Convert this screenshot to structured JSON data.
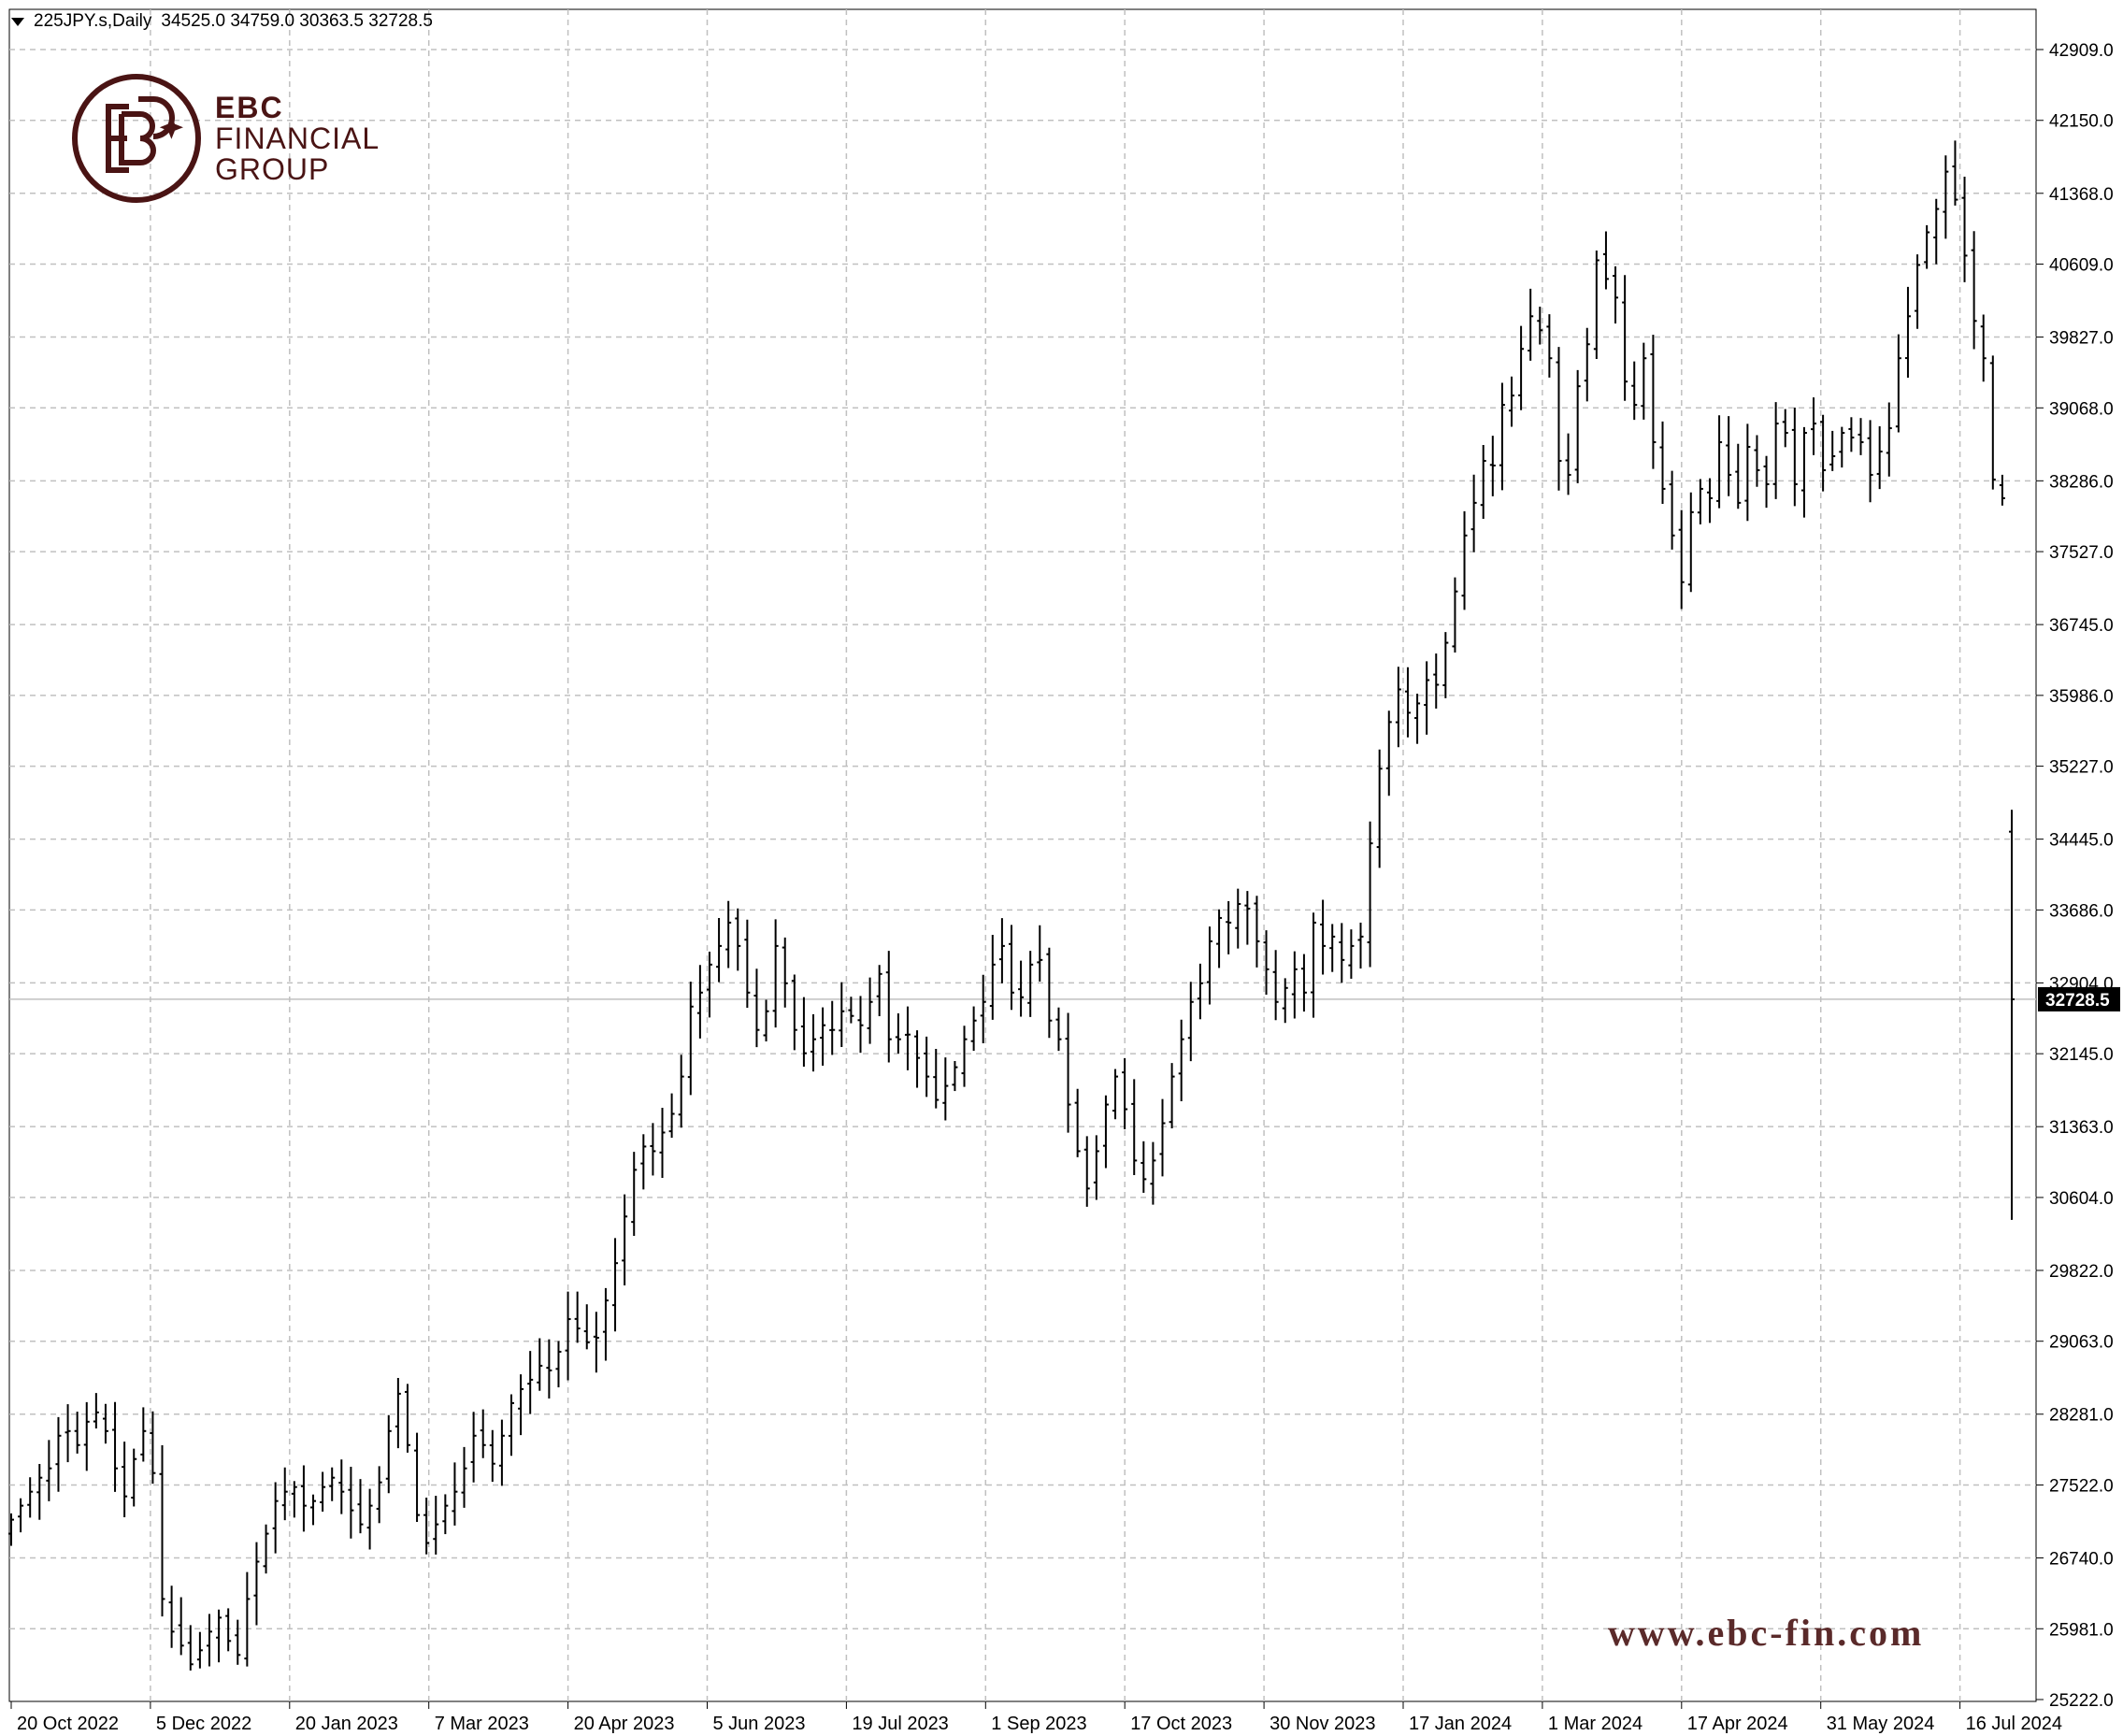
{
  "header": {
    "symbol": "225JPY.s,Daily",
    "ohlc": "34525.0 34759.0 30363.5 32728.5"
  },
  "logo": {
    "line1": "EBC",
    "line2": "FINANCIAL",
    "line3": "GROUP"
  },
  "watermark": "www.ebc-fin.com",
  "colors": {
    "bars": "#000000",
    "grid": "#c0c0c0",
    "price_line": "#c0c0c0",
    "price_tag_bg": "#000000",
    "price_tag_text": "#ffffff",
    "brand": "#4a1414"
  },
  "chart_data": {
    "type": "ohlc",
    "title": "225JPY.s,Daily",
    "ylim": [
      25222.0,
      43300.0
    ],
    "y_ticks": [
      "42909.0",
      "42150.0",
      "41368.0",
      "40609.0",
      "39827.0",
      "39068.0",
      "38286.0",
      "37527.0",
      "36745.0",
      "35986.0",
      "35227.0",
      "34445.0",
      "33686.0",
      "32904.0",
      "32145.0",
      "31363.0",
      "30604.0",
      "29822.0",
      "29063.0",
      "28281.0",
      "27522.0",
      "26740.0",
      "25981.0",
      "25222.0"
    ],
    "x_ticks": [
      "20 Oct 2022",
      "5 Dec 2022",
      "20 Jan 2023",
      "7 Mar 2023",
      "20 Apr 2023",
      "5 Jun 2023",
      "19 Jul 2023",
      "1 Sep 2023",
      "17 Oct 2023",
      "30 Nov 2023",
      "17 Jan 2024",
      "1 Mar 2024",
      "17 Apr 2024",
      "31 May 2024",
      "16 Jul 2024"
    ],
    "current_price": "32728.5",
    "grid": true,
    "last_bar": {
      "open": 34525.0,
      "high": 34759.0,
      "low": 30363.5,
      "close": 32728.5
    },
    "closes": [
      27150,
      27300,
      27450,
      27600,
      27700,
      28050,
      28100,
      27950,
      28200,
      28300,
      28100,
      27700,
      27400,
      27800,
      28100,
      27650,
      26300,
      25950,
      25800,
      25600,
      25750,
      25950,
      26100,
      25850,
      25700,
      26300,
      26700,
      27000,
      27350,
      27450,
      27500,
      27300,
      27350,
      27500,
      27600,
      27450,
      27250,
      27100,
      27300,
      27550,
      28100,
      28500,
      27950,
      27200,
      26900,
      27100,
      27300,
      27450,
      27700,
      28050,
      27950,
      27750,
      28050,
      28400,
      28550,
      28650,
      28800,
      28750,
      28950,
      29300,
      29200,
      29050,
      29100,
      29500,
      29900,
      30400,
      30900,
      31150,
      31100,
      31300,
      31500,
      31900,
      32650,
      32800,
      33100,
      33300,
      33550,
      33300,
      32800,
      32400,
      32600,
      33300,
      32900,
      32400,
      32150,
      32300,
      32450,
      32400,
      32600,
      32550,
      32450,
      32700,
      33000,
      32300,
      32300,
      32350,
      32100,
      31900,
      31650,
      31800,
      32000,
      32300,
      32500,
      32700,
      33100,
      33300,
      32800,
      32750,
      33100,
      33150,
      32500,
      32300,
      31600,
      31100,
      30700,
      31100,
      31600,
      31900,
      31550,
      31000,
      30800,
      31000,
      31400,
      31900,
      32300,
      32700,
      32900,
      33350,
      33600,
      33550,
      33750,
      33700,
      33350,
      33050,
      32700,
      32850,
      33050,
      32800,
      33550,
      33300,
      33400,
      33150,
      33300,
      33400,
      34400,
      35200,
      35700,
      36050,
      35800,
      35900,
      36150,
      36100,
      36550,
      37100,
      37700,
      38050,
      38500,
      38450,
      39100,
      39200,
      39700,
      40050,
      39900,
      39600,
      38500,
      38350,
      39300,
      39750,
      40650,
      40450,
      40250,
      39350,
      39100,
      39600,
      38700,
      38200,
      37700,
      37200,
      37950,
      38200,
      38100,
      38700,
      38350,
      38050,
      38650,
      38400,
      38250,
      38900,
      38800,
      38250,
      38800,
      38900,
      38400,
      38550,
      38800,
      38750,
      38700,
      38350,
      38600,
      38850,
      39600,
      40050,
      40600,
      40950,
      41200,
      41600,
      41300,
      40700,
      40000,
      39600,
      38300,
      38100,
      32728.5
    ]
  }
}
